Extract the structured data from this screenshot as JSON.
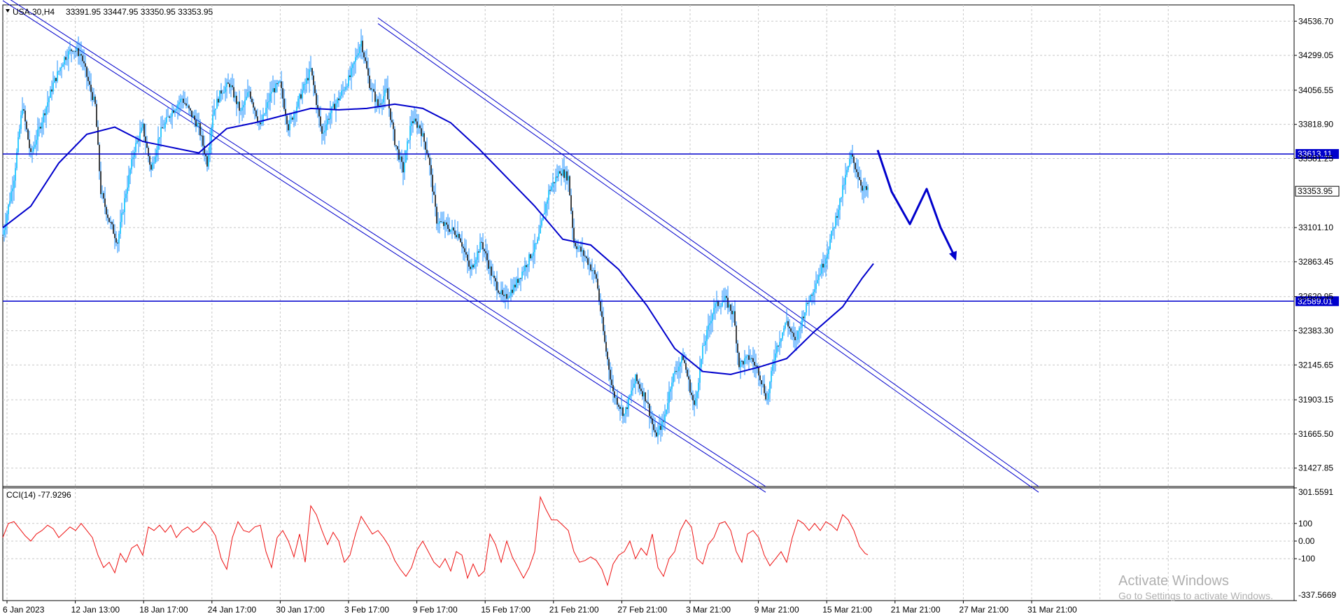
{
  "chart_data": [
    {
      "type": "candlestick",
      "symbol_header": "USA.30,H4",
      "ohlc_header": "33391.95 33447.95 33350.95 33353.95",
      "ylim": [
        31300,
        34650
      ],
      "y_ticks": [
        "34536.70",
        "34299.05",
        "34056.55",
        "33818.90",
        "33581.25",
        "33101.10",
        "32863.45",
        "32620.95",
        "32383.30",
        "32145.65",
        "31903.15",
        "31665.50",
        "31427.85"
      ],
      "x_ticks": [
        "6 Jan 2023",
        "12 Jan 13:00",
        "18 Jan 17:00",
        "24 Jan 17:00",
        "30 Jan 17:00",
        "3 Feb 17:00",
        "9 Feb 17:00",
        "15 Feb 17:00",
        "21 Feb 21:00",
        "27 Feb 21:00",
        "3 Mar 21:00",
        "9 Mar 21:00",
        "15 Mar 21:00",
        "21 Mar 21:00",
        "27 Mar 21:00",
        "31 Mar 21:00"
      ],
      "price_levels": [
        {
          "label": "33613.11",
          "value": 33613.11
        },
        {
          "label": "32589.01",
          "value": 32589.01
        }
      ],
      "current_price": {
        "label": "33353.95",
        "value": 33353.95
      },
      "close_path": [
        [
          0,
          33050
        ],
        [
          8,
          33450
        ],
        [
          14,
          33950
        ],
        [
          20,
          33600
        ],
        [
          28,
          33850
        ],
        [
          36,
          34100
        ],
        [
          44,
          34280
        ],
        [
          50,
          34350
        ],
        [
          56,
          34300
        ],
        [
          62,
          34080
        ],
        [
          66,
          33950
        ],
        [
          70,
          33350
        ],
        [
          76,
          33150
        ],
        [
          82,
          33000
        ],
        [
          88,
          33350
        ],
        [
          94,
          33650
        ],
        [
          100,
          33800
        ],
        [
          106,
          33500
        ],
        [
          112,
          33750
        ],
        [
          120,
          33900
        ],
        [
          128,
          34000
        ],
        [
          134,
          33900
        ],
        [
          140,
          33800
        ],
        [
          146,
          33550
        ],
        [
          150,
          33900
        ],
        [
          156,
          34050
        ],
        [
          162,
          34100
        ],
        [
          170,
          33900
        ],
        [
          176,
          34050
        ],
        [
          184,
          33800
        ],
        [
          192,
          34050
        ],
        [
          198,
          34100
        ],
        [
          204,
          33800
        ],
        [
          212,
          34000
        ],
        [
          220,
          34200
        ],
        [
          228,
          33750
        ],
        [
          234,
          33900
        ],
        [
          240,
          34000
        ],
        [
          248,
          34150
        ],
        [
          256,
          34400
        ],
        [
          262,
          34100
        ],
        [
          268,
          33950
        ],
        [
          274,
          34050
        ],
        [
          280,
          33700
        ],
        [
          286,
          33500
        ],
        [
          292,
          33850
        ],
        [
          298,
          33800
        ],
        [
          304,
          33600
        ],
        [
          310,
          33150
        ],
        [
          318,
          33100
        ],
        [
          326,
          33050
        ],
        [
          334,
          32800
        ],
        [
          342,
          33000
        ],
        [
          350,
          32750
        ],
        [
          358,
          32600
        ],
        [
          366,
          32700
        ],
        [
          374,
          32850
        ],
        [
          382,
          33000
        ],
        [
          390,
          33350
        ],
        [
          398,
          33500
        ],
        [
          404,
          33450
        ],
        [
          408,
          33000
        ],
        [
          416,
          32900
        ],
        [
          424,
          32750
        ],
        [
          430,
          32300
        ],
        [
          436,
          31950
        ],
        [
          444,
          31800
        ],
        [
          452,
          32050
        ],
        [
          460,
          31900
        ],
        [
          466,
          31650
        ],
        [
          472,
          31750
        ],
        [
          478,
          32050
        ],
        [
          486,
          32200
        ],
        [
          494,
          31850
        ],
        [
          500,
          32250
        ],
        [
          508,
          32550
        ],
        [
          516,
          32600
        ],
        [
          522,
          32500
        ],
        [
          526,
          32150
        ],
        [
          534,
          32200
        ],
        [
          540,
          32100
        ],
        [
          546,
          31900
        ],
        [
          552,
          32250
        ],
        [
          560,
          32450
        ],
        [
          566,
          32300
        ],
        [
          572,
          32500
        ],
        [
          580,
          32700
        ],
        [
          588,
          32900
        ],
        [
          596,
          33200
        ],
        [
          602,
          33450
        ],
        [
          606,
          33600
        ],
        [
          610,
          33500
        ],
        [
          614,
          33380
        ],
        [
          618,
          33353.95
        ]
      ],
      "moving_average": [
        [
          0,
          33100
        ],
        [
          20,
          33250
        ],
        [
          40,
          33550
        ],
        [
          60,
          33750
        ],
        [
          80,
          33800
        ],
        [
          100,
          33700
        ],
        [
          120,
          33660
        ],
        [
          140,
          33620
        ],
        [
          160,
          33790
        ],
        [
          180,
          33830
        ],
        [
          200,
          33880
        ],
        [
          220,
          33930
        ],
        [
          240,
          33920
        ],
        [
          260,
          33930
        ],
        [
          280,
          33960
        ],
        [
          300,
          33930
        ],
        [
          320,
          33830
        ],
        [
          340,
          33650
        ],
        [
          360,
          33450
        ],
        [
          380,
          33250
        ],
        [
          400,
          33020
        ],
        [
          420,
          32980
        ],
        [
          440,
          32810
        ],
        [
          460,
          32560
        ],
        [
          480,
          32260
        ],
        [
          500,
          32100
        ],
        [
          520,
          32080
        ],
        [
          540,
          32130
        ],
        [
          560,
          32190
        ],
        [
          580,
          32380
        ],
        [
          600,
          32550
        ],
        [
          614,
          32750
        ],
        [
          622,
          32850
        ]
      ],
      "channels": [
        [
          [
            0,
            34720
          ],
          [
            545,
            31300
          ]
        ],
        [
          [
            0,
            34680
          ],
          [
            545,
            31260
          ]
        ],
        [
          [
            268,
            34560
          ],
          [
            740,
            31300
          ]
        ],
        [
          [
            268,
            34520
          ],
          [
            740,
            31260
          ]
        ]
      ],
      "projection_arrow": [
        [
          625,
          33640
        ],
        [
          635,
          33350
        ],
        [
          648,
          33125
        ],
        [
          660,
          33370
        ],
        [
          670,
          33100
        ],
        [
          680,
          32900
        ]
      ]
    },
    {
      "type": "line",
      "indicator_header": "CCI(14) -77.9296",
      "ylim": [
        -337.5669,
        301.5591
      ],
      "y_ticks": [
        "301.5591",
        "100",
        "0.00",
        "-100",
        "-337.5669"
      ],
      "levels": [
        100,
        0,
        -100
      ],
      "series": [
        {
          "color": "#ee1111",
          "values": [
            [
              0,
              20
            ],
            [
              4,
              100
            ],
            [
              8,
              110
            ],
            [
              12,
              70
            ],
            [
              16,
              30
            ],
            [
              20,
              0
            ],
            [
              24,
              40
            ],
            [
              28,
              60
            ],
            [
              32,
              90
            ],
            [
              36,
              70
            ],
            [
              40,
              20
            ],
            [
              44,
              50
            ],
            [
              48,
              80
            ],
            [
              52,
              60
            ],
            [
              56,
              100
            ],
            [
              60,
              60
            ],
            [
              64,
              20
            ],
            [
              68,
              -80
            ],
            [
              72,
              -150
            ],
            [
              76,
              -120
            ],
            [
              80,
              -180
            ],
            [
              84,
              -70
            ],
            [
              88,
              -120
            ],
            [
              92,
              -40
            ],
            [
              96,
              -20
            ],
            [
              100,
              -80
            ],
            [
              104,
              80
            ],
            [
              108,
              60
            ],
            [
              112,
              90
            ],
            [
              116,
              50
            ],
            [
              120,
              90
            ],
            [
              124,
              20
            ],
            [
              128,
              60
            ],
            [
              132,
              80
            ],
            [
              136,
              50
            ],
            [
              140,
              70
            ],
            [
              144,
              110
            ],
            [
              148,
              80
            ],
            [
              152,
              30
            ],
            [
              156,
              -100
            ],
            [
              160,
              -160
            ],
            [
              164,
              20
            ],
            [
              168,
              110
            ],
            [
              172,
              60
            ],
            [
              176,
              50
            ],
            [
              180,
              80
            ],
            [
              184,
              90
            ],
            [
              188,
              -60
            ],
            [
              192,
              -150
            ],
            [
              196,
              20
            ],
            [
              200,
              60
            ],
            [
              204,
              0
            ],
            [
              208,
              -90
            ],
            [
              212,
              40
            ],
            [
              216,
              -120
            ],
            [
              220,
              200
            ],
            [
              224,
              150
            ],
            [
              228,
              60
            ],
            [
              232,
              -20
            ],
            [
              236,
              50
            ],
            [
              240,
              0
            ],
            [
              244,
              -120
            ],
            [
              248,
              -80
            ],
            [
              252,
              40
            ],
            [
              256,
              140
            ],
            [
              260,
              90
            ],
            [
              264,
              40
            ],
            [
              268,
              60
            ],
            [
              272,
              20
            ],
            [
              276,
              -30
            ],
            [
              280,
              -110
            ],
            [
              284,
              -160
            ],
            [
              288,
              -200
            ],
            [
              292,
              -150
            ],
            [
              296,
              -50
            ],
            [
              300,
              0
            ],
            [
              304,
              -60
            ],
            [
              308,
              -120
            ],
            [
              312,
              -150
            ],
            [
              316,
              -100
            ],
            [
              320,
              -170
            ],
            [
              324,
              -60
            ],
            [
              328,
              -80
            ],
            [
              332,
              -210
            ],
            [
              336,
              -130
            ],
            [
              340,
              -200
            ],
            [
              344,
              -170
            ],
            [
              348,
              40
            ],
            [
              352,
              -20
            ],
            [
              356,
              -120
            ],
            [
              360,
              0
            ],
            [
              364,
              -90
            ],
            [
              368,
              -150
            ],
            [
              372,
              -210
            ],
            [
              376,
              -150
            ],
            [
              380,
              -60
            ],
            [
              384,
              250
            ],
            [
              388,
              180
            ],
            [
              392,
              120
            ],
            [
              396,
              120
            ],
            [
              400,
              90
            ],
            [
              404,
              60
            ],
            [
              408,
              -60
            ],
            [
              412,
              -120
            ],
            [
              416,
              -110
            ],
            [
              420,
              -90
            ],
            [
              424,
              -110
            ],
            [
              428,
              -160
            ],
            [
              432,
              -250
            ],
            [
              436,
              -130
            ],
            [
              440,
              -80
            ],
            [
              444,
              -60
            ],
            [
              448,
              0
            ],
            [
              452,
              -100
            ],
            [
              456,
              -40
            ],
            [
              460,
              -80
            ],
            [
              464,
              40
            ],
            [
              468,
              -150
            ],
            [
              472,
              -200
            ],
            [
              476,
              -100
            ],
            [
              480,
              -60
            ],
            [
              484,
              60
            ],
            [
              488,
              120
            ],
            [
              492,
              80
            ],
            [
              496,
              -100
            ],
            [
              500,
              -130
            ],
            [
              504,
              -20
            ],
            [
              508,
              20
            ],
            [
              512,
              100
            ],
            [
              516,
              110
            ],
            [
              520,
              60
            ],
            [
              524,
              -60
            ],
            [
              528,
              -120
            ],
            [
              532,
              40
            ],
            [
              536,
              60
            ],
            [
              540,
              20
            ],
            [
              544,
              -80
            ],
            [
              548,
              -140
            ],
            [
              552,
              -100
            ],
            [
              556,
              -60
            ],
            [
              560,
              -120
            ],
            [
              564,
              20
            ],
            [
              568,
              120
            ],
            [
              572,
              100
            ],
            [
              576,
              60
            ],
            [
              580,
              100
            ],
            [
              584,
              60
            ],
            [
              588,
              110
            ],
            [
              592,
              90
            ],
            [
              596,
              60
            ],
            [
              600,
              150
            ],
            [
              604,
              120
            ],
            [
              608,
              60
            ],
            [
              612,
              -30
            ],
            [
              616,
              -70
            ],
            [
              618,
              -77.9296
            ]
          ]
        }
      ]
    }
  ],
  "watermark": {
    "title": "Activate Windows",
    "subtitle": "Go to Settings to activate Windows."
  }
}
